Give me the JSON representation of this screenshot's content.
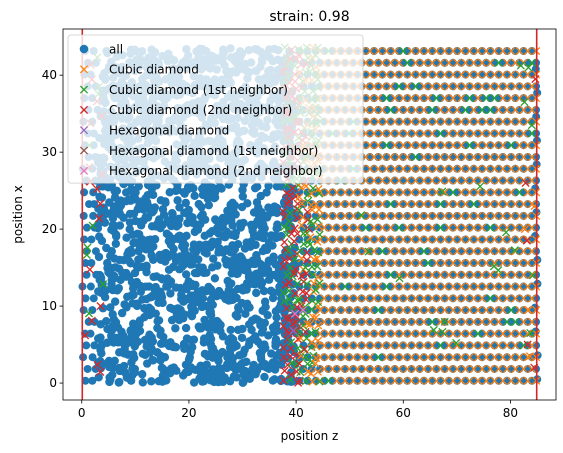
{
  "chart_data": {
    "type": "scatter",
    "title": "strain: 0.98",
    "xlabel": "position z",
    "ylabel": "position x",
    "xlim": [
      -3.5,
      88.5
    ],
    "ylim": [
      -2.2,
      46.0
    ],
    "xticks": [
      0,
      20,
      40,
      60,
      80
    ],
    "yticks": [
      0,
      10,
      20,
      30,
      40
    ],
    "grid": false,
    "legend_position": "top-left",
    "vertical_lines": [
      {
        "x": 0.1,
        "color": "#d62728"
      },
      {
        "x": 84.9,
        "color": "#d62728"
      }
    ],
    "series": [
      {
        "name": "all",
        "marker": "circle",
        "color": "#1f77b4",
        "distribution": {
          "x_range": [
            0,
            85
          ],
          "y_range": [
            0,
            43.5
          ],
          "dense_region_x": [
            3,
            40
          ]
        }
      },
      {
        "name": "Cubic diamond",
        "marker": "x",
        "color": "#ff7f0e",
        "distribution": {
          "x_range": [
            41,
            85
          ],
          "y_range": [
            0,
            43
          ],
          "lattice": true
        }
      },
      {
        "name": "Cubic diamond (1st neighbor)",
        "marker": "x",
        "color": "#2ca02c",
        "distribution": {
          "x_range": [
            39,
            48
          ],
          "y_range": [
            0,
            44
          ],
          "plus_scattered": true
        }
      },
      {
        "name": "Cubic diamond (2nd neighbor)",
        "marker": "x",
        "color": "#d62728",
        "distribution": {
          "x_range": [
            37,
            43
          ],
          "y_range": [
            0,
            44
          ],
          "plus_left_edge": [
            0,
            4
          ]
        }
      },
      {
        "name": "Hexagonal diamond",
        "marker": "x",
        "color": "#9467bd",
        "distribution": {
          "x_range": [
            39,
            40
          ],
          "y_range": [
            6,
            8
          ],
          "sparse": true
        }
      },
      {
        "name": "Hexagonal diamond (1st neighbor)",
        "marker": "x",
        "color": "#8c564b",
        "distribution": {
          "x_range": [
            40,
            41
          ],
          "y_range": [
            6,
            8
          ],
          "sparse": true
        }
      },
      {
        "name": "Hexagonal diamond (2nd neighbor)",
        "marker": "x",
        "color": "#e377c2",
        "distribution": {
          "x_range": [
            39,
            42
          ],
          "y_range": [
            6,
            10
          ],
          "sparse": true
        }
      }
    ]
  }
}
